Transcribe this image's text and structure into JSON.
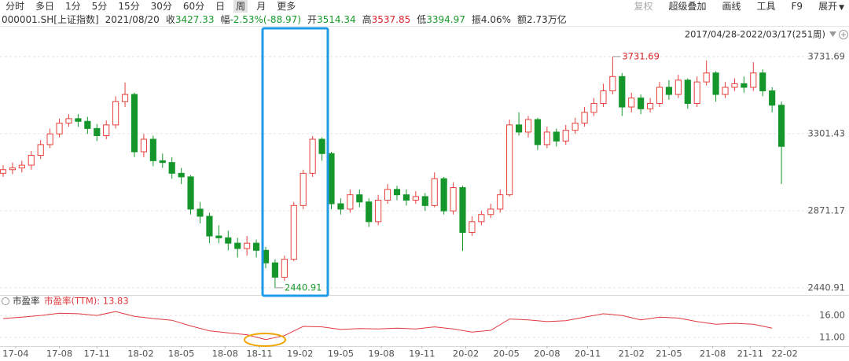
{
  "toolbar": {
    "periods": [
      "分时",
      "多日",
      "1分",
      "5分",
      "15分",
      "30分",
      "60分",
      "日",
      "周",
      "月",
      "更多"
    ],
    "active_period": "周",
    "tools": [
      "复权",
      "超级叠加",
      "画线",
      "工具",
      "F9",
      "展开"
    ],
    "disabled_tool": "复权"
  },
  "info": {
    "name": "000001.SH[上证指数]",
    "date": "2021/08/20",
    "fields": [
      {
        "label": "收",
        "value": "3427.33",
        "color": "#1a9a2a"
      },
      {
        "label": "幅",
        "value": "-2.53%(-88.97)",
        "color": "#1a9a2a"
      },
      {
        "label": "开",
        "value": "3514.34",
        "color": "#1a9a2a"
      },
      {
        "label": "高",
        "value": "3537.85",
        "color": "#d9262a"
      },
      {
        "label": "低",
        "value": "3394.97",
        "color": "#1a9a2a"
      },
      {
        "label": "振",
        "value": "4.06%",
        "color": "#333333"
      },
      {
        "label": "额",
        "value": "2.73万亿",
        "color": "#333333"
      }
    ]
  },
  "chart_data": [
    {
      "type": "candlestick",
      "range_label": "2017/04/28-2022/03/17(251周)",
      "x": [
        0,
        3,
        6,
        9,
        12,
        15,
        18,
        21,
        24,
        27,
        30,
        33,
        36,
        39,
        42,
        45,
        48,
        51,
        54,
        57,
        60,
        63,
        66,
        69,
        72,
        75,
        78,
        81,
        84,
        87,
        90,
        93,
        96,
        99,
        102,
        105,
        108,
        111,
        114,
        117,
        120,
        123,
        126,
        129,
        132,
        135,
        138,
        141,
        144,
        147,
        150,
        153,
        156,
        159,
        162,
        165,
        168,
        171,
        174,
        177,
        180,
        183,
        186,
        189,
        192,
        195,
        198,
        201,
        204,
        207,
        210,
        213,
        216,
        219,
        222,
        225,
        228,
        231,
        234,
        237,
        240,
        243,
        246,
        249
      ],
      "open": [
        3080,
        3100,
        3110,
        3125,
        3180,
        3240,
        3300,
        3360,
        3385,
        3370,
        3330,
        3290,
        3350,
        3480,
        3520,
        3200,
        3270,
        3150,
        3140,
        3080,
        3060,
        2880,
        2840,
        2730,
        2720,
        2690,
        2660,
        2690,
        2650,
        2580,
        2500,
        2600,
        2900,
        3080,
        3270,
        3190,
        2910,
        2880,
        2960,
        2920,
        2810,
        2930,
        2990,
        2960,
        2930,
        2950,
        2900,
        3050,
        2870,
        3000,
        2750,
        2810,
        2850,
        2880,
        2960,
        3350,
        3310,
        3380,
        3240,
        3310,
        3260,
        3320,
        3360,
        3420,
        3470,
        3540,
        3620,
        3450,
        3500,
        3440,
        3470,
        3560,
        3520,
        3600,
        3470,
        3590,
        3640,
        3520,
        3560,
        3580,
        3560,
        3640,
        3540,
        3460
      ],
      "high": [
        3125,
        3140,
        3150,
        3205,
        3265,
        3330,
        3385,
        3410,
        3410,
        3395,
        3355,
        3375,
        3510,
        3587,
        3530,
        3300,
        3290,
        3190,
        3170,
        3110,
        3070,
        2920,
        2860,
        2790,
        2760,
        2720,
        2730,
        2710,
        2670,
        2600,
        2620,
        2920,
        3100,
        3288,
        3280,
        3200,
        2940,
        2990,
        2990,
        2940,
        2960,
        3020,
        3010,
        2990,
        2980,
        2970,
        3085,
        3060,
        3030,
        3010,
        2840,
        2870,
        2910,
        2990,
        3380,
        3420,
        3400,
        3390,
        3340,
        3330,
        3350,
        3390,
        3450,
        3500,
        3580,
        3731.69,
        3640,
        3530,
        3520,
        3500,
        3590,
        3600,
        3630,
        3610,
        3620,
        3710,
        3650,
        3590,
        3610,
        3620,
        3700,
        3660,
        3560,
        3480
      ],
      "low": [
        3060,
        3075,
        3085,
        3100,
        3160,
        3220,
        3280,
        3340,
        3340,
        3300,
        3260,
        3270,
        3330,
        3450,
        3170,
        3170,
        3120,
        3110,
        3050,
        3020,
        2850,
        2800,
        2690,
        2690,
        2650,
        2610,
        2620,
        2610,
        2550,
        2440.91,
        2480,
        2590,
        2880,
        3060,
        3150,
        2880,
        2850,
        2860,
        2890,
        2780,
        2790,
        2910,
        2930,
        2900,
        2910,
        2870,
        2890,
        2850,
        2850,
        2646,
        2730,
        2790,
        2830,
        2860,
        2950,
        3290,
        3280,
        3210,
        3220,
        3230,
        3240,
        3300,
        3340,
        3400,
        3450,
        3520,
        3400,
        3420,
        3410,
        3420,
        3450,
        3490,
        3500,
        3440,
        3450,
        3570,
        3480,
        3500,
        3540,
        3530,
        3540,
        3510,
        3420,
        3020
      ],
      "close": [
        3100,
        3110,
        3125,
        3180,
        3240,
        3300,
        3360,
        3385,
        3370,
        3330,
        3290,
        3350,
        3480,
        3520,
        3200,
        3270,
        3150,
        3140,
        3080,
        3060,
        2880,
        2840,
        2730,
        2720,
        2690,
        2660,
        2690,
        2650,
        2580,
        2500,
        2600,
        2900,
        3080,
        3270,
        3190,
        2910,
        2880,
        2960,
        2920,
        2810,
        2930,
        2990,
        2960,
        2930,
        2950,
        2900,
        3050,
        2870,
        3000,
        2750,
        2810,
        2850,
        2880,
        2960,
        3350,
        3310,
        3380,
        3240,
        3310,
        3260,
        3320,
        3360,
        3420,
        3470,
        3540,
        3620,
        3450,
        3500,
        3440,
        3470,
        3560,
        3520,
        3600,
        3470,
        3590,
        3640,
        3520,
        3560,
        3580,
        3560,
        3640,
        3540,
        3460,
        3230
      ],
      "up_color": "#e8413c",
      "down_color": "#14962a",
      "xlim": [
        -1,
        253
      ],
      "ylim": [
        2401,
        3797
      ],
      "yticks": [
        3731.69,
        3301.43,
        2871.17,
        2440.91
      ],
      "xticks": [
        {
          "value": 4,
          "label": "17-04"
        },
        {
          "value": 18,
          "label": "17-08"
        },
        {
          "value": 30,
          "label": "17-11"
        },
        {
          "value": 44,
          "label": "18-02"
        },
        {
          "value": 57,
          "label": "18-05"
        },
        {
          "value": 71,
          "label": "18-08"
        },
        {
          "value": 82,
          "label": "18-11"
        },
        {
          "value": 95,
          "label": "19-02"
        },
        {
          "value": 108,
          "label": "19-05"
        },
        {
          "value": 121,
          "label": "19-08"
        },
        {
          "value": 134,
          "label": "19-11"
        },
        {
          "value": 148,
          "label": "20-02"
        },
        {
          "value": 161,
          "label": "20-05"
        },
        {
          "value": 174,
          "label": "20-08"
        },
        {
          "value": 187,
          "label": "20-11"
        },
        {
          "value": 201,
          "label": "21-02"
        },
        {
          "value": 213,
          "label": "21-05"
        },
        {
          "value": 227,
          "label": "21-08"
        },
        {
          "value": 239,
          "label": "21-11"
        },
        {
          "value": 250,
          "label": "22-02"
        }
      ],
      "grid": true
    },
    {
      "type": "line",
      "title": "市盈率",
      "label": "市盈率(TTM): 13.83",
      "color": "#e0393e",
      "x": [
        0,
        6,
        12,
        18,
        24,
        30,
        36,
        42,
        48,
        54,
        60,
        66,
        72,
        78,
        84,
        90,
        96,
        102,
        108,
        114,
        120,
        126,
        132,
        138,
        144,
        150,
        156,
        162,
        168,
        174,
        180,
        186,
        192,
        198,
        204,
        210,
        216,
        222,
        228,
        234,
        240,
        246
      ],
      "values": [
        15.3,
        15.6,
        16.0,
        16.5,
        16.4,
        16.0,
        16.9,
        15.8,
        15.3,
        14.9,
        13.6,
        12.5,
        12.0,
        11.6,
        10.5,
        11.4,
        13.5,
        13.4,
        12.8,
        13.0,
        12.9,
        13.1,
        12.9,
        13.4,
        12.9,
        12.2,
        12.6,
        15.2,
        15.0,
        14.6,
        14.8,
        15.6,
        16.4,
        16.0,
        15.0,
        15.6,
        15.4,
        14.6,
        14.0,
        14.2,
        14.0,
        13.1
      ],
      "xlim": [
        -1,
        253
      ],
      "ylim": [
        9,
        18
      ],
      "yticks": [
        {
          "value": 16,
          "label": "16.00"
        },
        {
          "value": 11,
          "label": "11.00"
        }
      ],
      "grid": true
    }
  ]
}
